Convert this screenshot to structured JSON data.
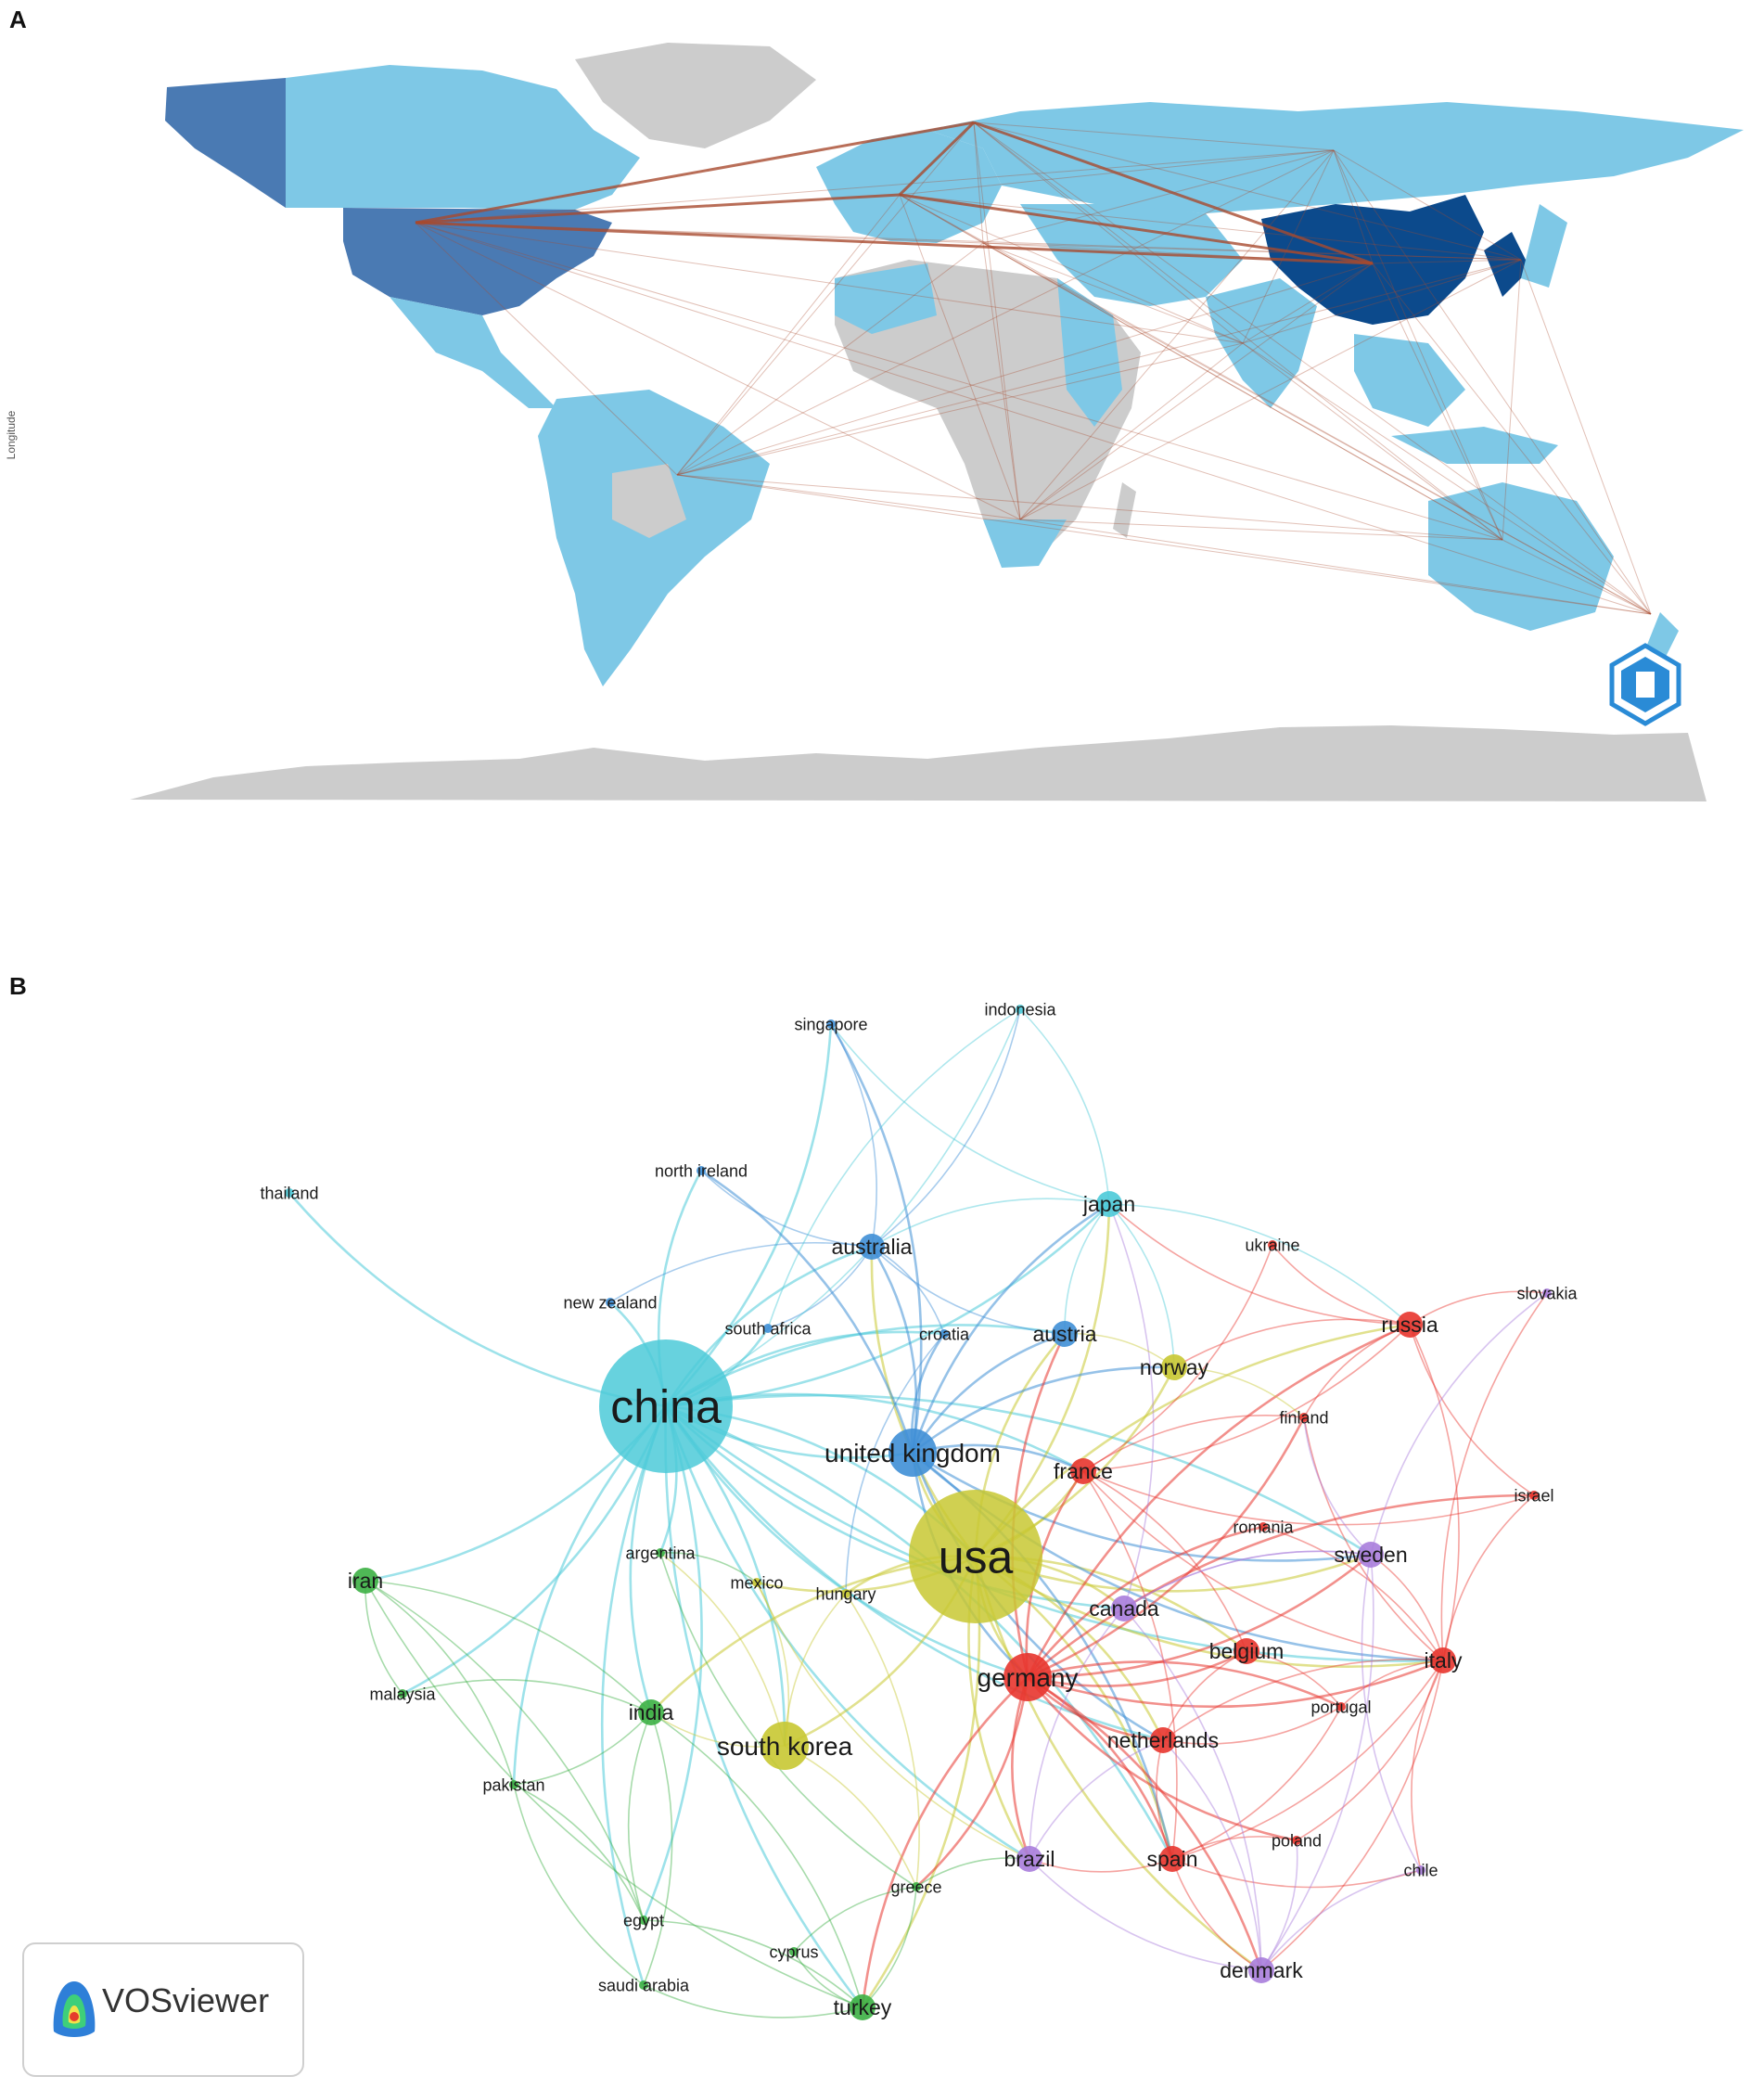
{
  "panels": {
    "a_label": "A",
    "b_label": "B"
  },
  "map": {
    "y_axis_label": "Longitude",
    "watermark": "BIBLIOMETRIX",
    "colors": {
      "none": "#cccccc",
      "low": "#7ec8e6",
      "mid": "#4a7ab3",
      "high": "#0c4a8c",
      "link": "#a84a2e"
    }
  },
  "network": {
    "logo_text": "VOSviewer",
    "clusters": {
      "red": "#e8352e",
      "green": "#3cb044",
      "blue": "#3f8fd6",
      "yellow": "#c8c832",
      "purple": "#a87ddb",
      "cyan": "#4ccad8"
    },
    "nodes": [
      {
        "id": "china",
        "label": "china",
        "cluster": "cyan",
        "size": "xl"
      },
      {
        "id": "usa",
        "label": "usa",
        "cluster": "yellow",
        "size": "xl"
      },
      {
        "id": "uk",
        "label": "united kingdom",
        "cluster": "blue",
        "size": "l"
      },
      {
        "id": "germany",
        "label": "germany",
        "cluster": "red",
        "size": "l"
      },
      {
        "id": "southkorea",
        "label": "south korea",
        "cluster": "yellow",
        "size": "l"
      },
      {
        "id": "australia",
        "label": "australia",
        "cluster": "blue",
        "size": "m"
      },
      {
        "id": "japan",
        "label": "japan",
        "cluster": "cyan",
        "size": "m"
      },
      {
        "id": "france",
        "label": "france",
        "cluster": "red",
        "size": "m"
      },
      {
        "id": "canada",
        "label": "canada",
        "cluster": "purple",
        "size": "m"
      },
      {
        "id": "italy",
        "label": "italy",
        "cluster": "red",
        "size": "m"
      },
      {
        "id": "spain",
        "label": "spain",
        "cluster": "red",
        "size": "m"
      },
      {
        "id": "brazil",
        "label": "brazil",
        "cluster": "purple",
        "size": "m"
      },
      {
        "id": "russia",
        "label": "russia",
        "cluster": "red",
        "size": "m"
      },
      {
        "id": "sweden",
        "label": "sweden",
        "cluster": "purple",
        "size": "m"
      },
      {
        "id": "netherlands",
        "label": "netherlands",
        "cluster": "red",
        "size": "m"
      },
      {
        "id": "austria",
        "label": "austria",
        "cluster": "blue",
        "size": "m"
      },
      {
        "id": "norway",
        "label": "norway",
        "cluster": "yellow",
        "size": "m"
      },
      {
        "id": "india",
        "label": "india",
        "cluster": "green",
        "size": "m"
      },
      {
        "id": "iran",
        "label": "iran",
        "cluster": "green",
        "size": "m"
      },
      {
        "id": "turkey",
        "label": "turkey",
        "cluster": "green",
        "size": "m"
      },
      {
        "id": "denmark",
        "label": "denmark",
        "cluster": "purple",
        "size": "m"
      },
      {
        "id": "belgium",
        "label": "belgium",
        "cluster": "red",
        "size": "m"
      },
      {
        "id": "singapore",
        "label": "singapore",
        "cluster": "blue",
        "size": "s"
      },
      {
        "id": "indonesia",
        "label": "indonesia",
        "cluster": "cyan",
        "size": "s"
      },
      {
        "id": "thailand",
        "label": "thailand",
        "cluster": "cyan",
        "size": "s"
      },
      {
        "id": "northireland",
        "label": "north ireland",
        "cluster": "blue",
        "size": "s"
      },
      {
        "id": "newzealand",
        "label": "new zealand",
        "cluster": "blue",
        "size": "s"
      },
      {
        "id": "southafrica",
        "label": "south africa",
        "cluster": "blue",
        "size": "s"
      },
      {
        "id": "croatia",
        "label": "croatia",
        "cluster": "blue",
        "size": "s"
      },
      {
        "id": "ukraine",
        "label": "ukraine",
        "cluster": "red",
        "size": "s"
      },
      {
        "id": "slovakia",
        "label": "slovakia",
        "cluster": "purple",
        "size": "s"
      },
      {
        "id": "finland",
        "label": "finland",
        "cluster": "red",
        "size": "s"
      },
      {
        "id": "israel",
        "label": "israel",
        "cluster": "red",
        "size": "s"
      },
      {
        "id": "romania",
        "label": "romania",
        "cluster": "red",
        "size": "s"
      },
      {
        "id": "argentina",
        "label": "argentina",
        "cluster": "green",
        "size": "s"
      },
      {
        "id": "mexico",
        "label": "mexico",
        "cluster": "yellow",
        "size": "s"
      },
      {
        "id": "hungary",
        "label": "hungary",
        "cluster": "yellow",
        "size": "s"
      },
      {
        "id": "malaysia",
        "label": "malaysia",
        "cluster": "green",
        "size": "s"
      },
      {
        "id": "pakistan",
        "label": "pakistan",
        "cluster": "green",
        "size": "s"
      },
      {
        "id": "portugal",
        "label": "portugal",
        "cluster": "red",
        "size": "s"
      },
      {
        "id": "poland",
        "label": "poland",
        "cluster": "red",
        "size": "s"
      },
      {
        "id": "chile",
        "label": "chile",
        "cluster": "purple",
        "size": "s"
      },
      {
        "id": "greece",
        "label": "greece",
        "cluster": "green",
        "size": "s"
      },
      {
        "id": "egypt",
        "label": "egypt",
        "cluster": "green",
        "size": "s"
      },
      {
        "id": "cyprus",
        "label": "cyprus",
        "cluster": "green",
        "size": "s"
      },
      {
        "id": "saudiarabia",
        "label": "saudi arabia",
        "cluster": "green",
        "size": "s"
      }
    ]
  }
}
